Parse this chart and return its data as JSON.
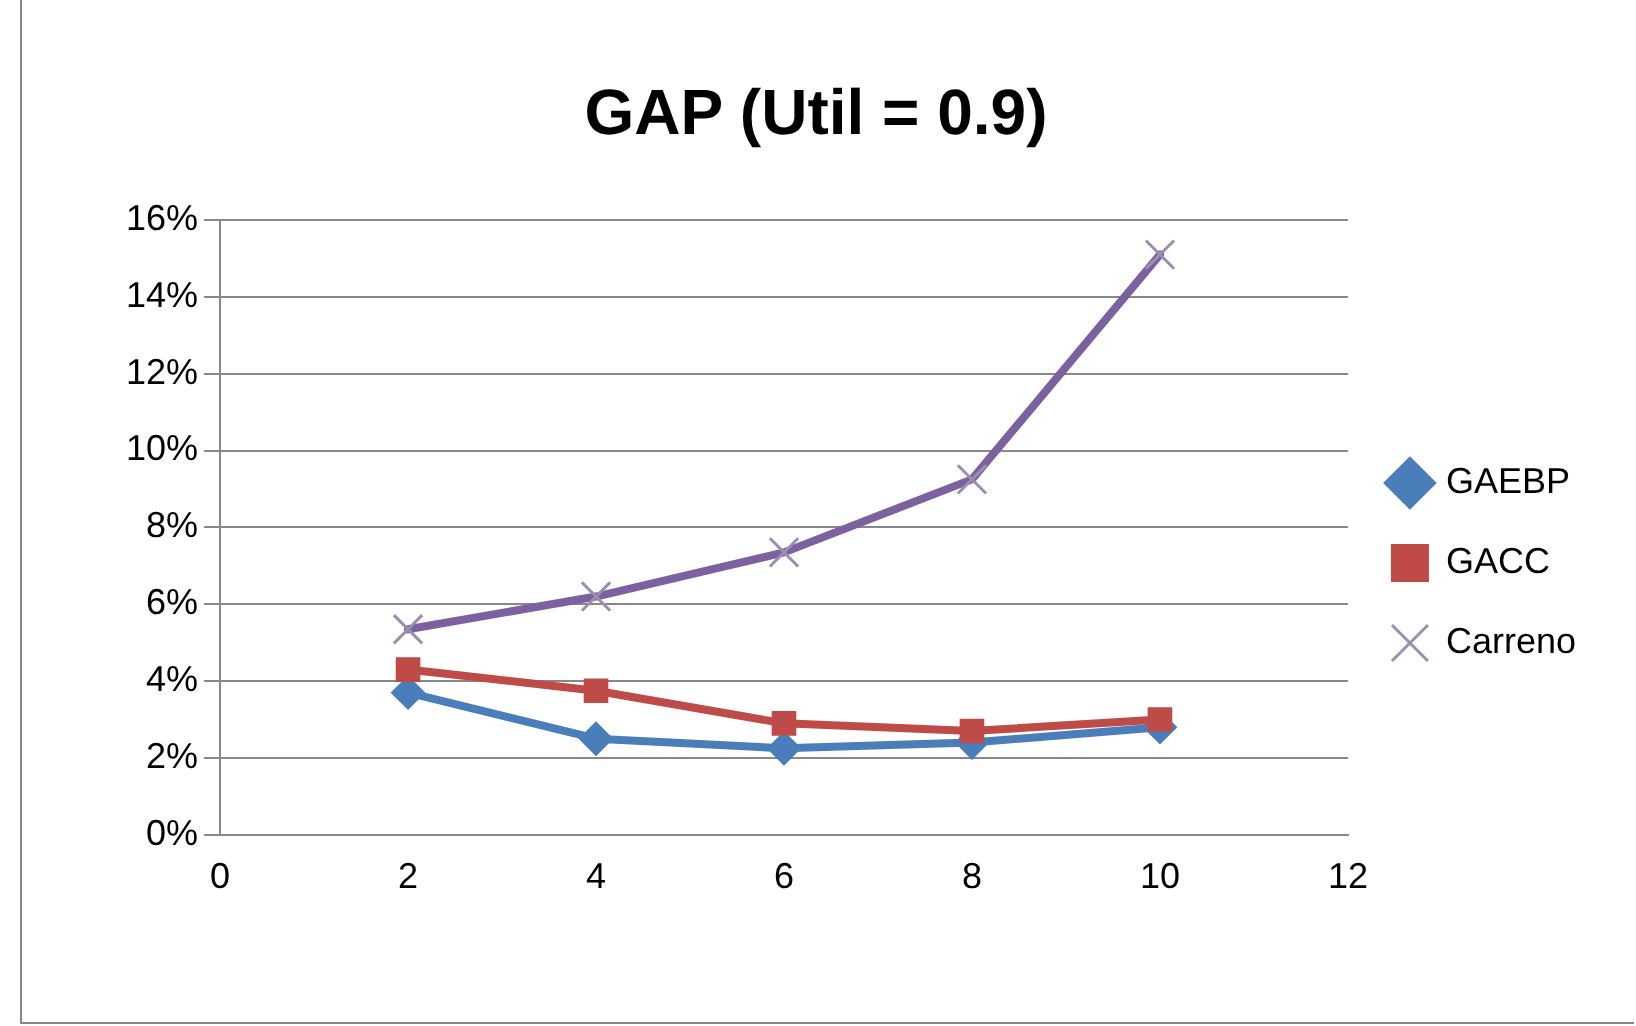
{
  "chart_data": {
    "type": "line",
    "title": "GAP (Util = 0.9)",
    "x": [
      2,
      4,
      6,
      8,
      10
    ],
    "series": [
      {
        "name": "GAEBP",
        "color": "#4a7ebb",
        "marker": "diamond",
        "values": [
          3.7,
          2.5,
          2.25,
          2.4,
          2.8
        ]
      },
      {
        "name": "GACC",
        "color": "#be4b48",
        "marker": "square",
        "values": [
          4.3,
          3.75,
          2.9,
          2.7,
          3.0
        ]
      },
      {
        "name": "Carreno",
        "color": "#7d60a0",
        "marker": "cross",
        "values": [
          5.35,
          6.2,
          7.35,
          9.25,
          15.1
        ]
      }
    ],
    "xlim": [
      0,
      12
    ],
    "xticks": [
      0,
      2,
      4,
      6,
      8,
      10,
      12
    ],
    "ylim": [
      0,
      16
    ],
    "yticks": [
      {
        "value": 0,
        "label": "0%"
      },
      {
        "value": 2,
        "label": "2%"
      },
      {
        "value": 4,
        "label": "4%"
      },
      {
        "value": 6,
        "label": "6%"
      },
      {
        "value": 8,
        "label": "8%"
      },
      {
        "value": 10,
        "label": "10%"
      },
      {
        "value": 12,
        "label": "12%"
      },
      {
        "value": 14,
        "label": "14%"
      },
      {
        "value": 16,
        "label": "16%"
      }
    ],
    "grid": "y",
    "legend": "right"
  }
}
